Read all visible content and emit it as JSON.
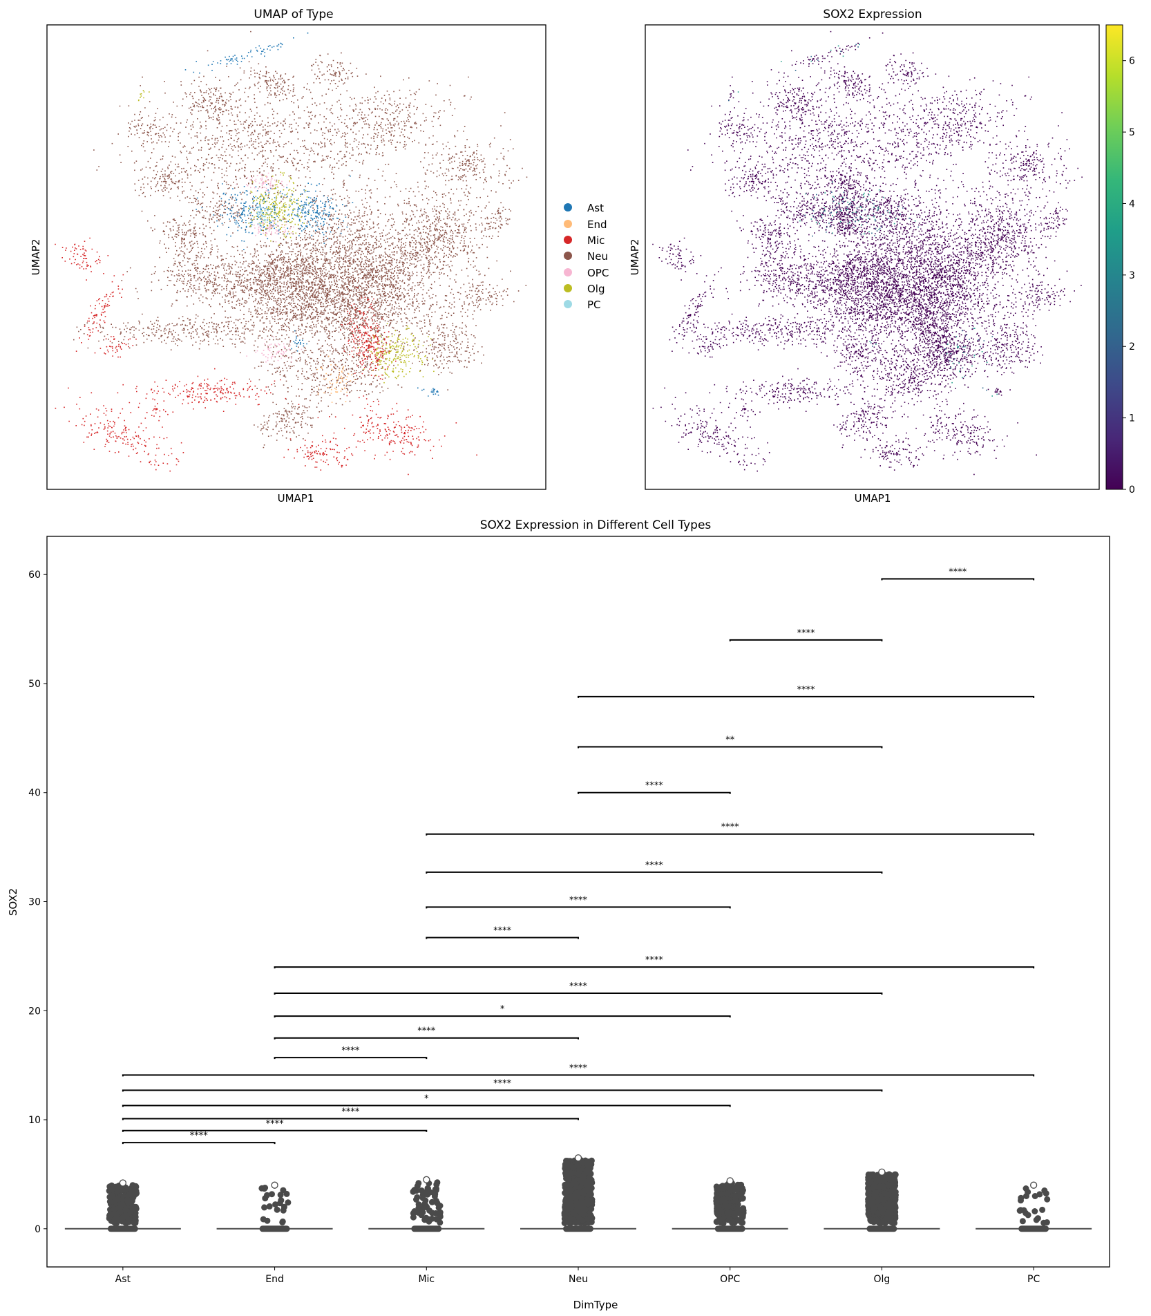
{
  "umap_type": {
    "title": "UMAP of Type",
    "xlabel": "UMAP1",
    "ylabel": "UMAP2",
    "legend": [
      {
        "label": "Ast",
        "color": "#1f77b4"
      },
      {
        "label": "End",
        "color": "#ffbb78"
      },
      {
        "label": "Mic",
        "color": "#d62728"
      },
      {
        "label": "Neu",
        "color": "#8c564b"
      },
      {
        "label": "OPC",
        "color": "#f7b6d2"
      },
      {
        "label": "Olg",
        "color": "#bcbd22"
      },
      {
        "label": "PC",
        "color": "#9edae5"
      }
    ]
  },
  "umap_sox2": {
    "title": "SOX2 Expression",
    "xlabel": "UMAP1",
    "ylabel": "UMAP2",
    "colorbar": {
      "ticks": [
        "0",
        "1",
        "2",
        "3",
        "4",
        "5",
        "6"
      ],
      "min": 0,
      "max": 6.5,
      "colormap": [
        "#440154",
        "#482878",
        "#3e4989",
        "#31688e",
        "#26828e",
        "#1f9e89",
        "#35b779",
        "#6ece58",
        "#b5de2b",
        "#fde725"
      ]
    },
    "base_color": "#440154"
  },
  "chart_data": {
    "type": "scatter",
    "subtype": "strip-with-violin-and-significance",
    "title": "SOX2 Expression in Different Cell Types",
    "xlabel": "DimType",
    "ylabel": "SOX2",
    "categories": [
      "Ast",
      "End",
      "Mic",
      "Neu",
      "OPC",
      "Olg",
      "PC"
    ],
    "ylim": [
      -3.5,
      63.5
    ],
    "yticks": [
      0,
      10,
      20,
      30,
      40,
      50,
      60
    ],
    "ytick_labels": [
      "0",
      "10",
      "20",
      "30",
      "40",
      "50",
      "60"
    ],
    "grid": false,
    "point_color": "#4a4a4a",
    "max_values": [
      4.2,
      4.0,
      4.5,
      6.5,
      4.4,
      5.2,
      4.0
    ],
    "strip_density": [
      "dense",
      "sparse",
      "medium",
      "very-dense",
      "dense",
      "very-dense",
      "sparse"
    ],
    "significance": [
      {
        "from": "Ast",
        "to": "End",
        "y": 7.9,
        "label": "****"
      },
      {
        "from": "Ast",
        "to": "Mic",
        "y": 9.0,
        "label": "****"
      },
      {
        "from": "Ast",
        "to": "Neu",
        "y": 10.1,
        "label": "****"
      },
      {
        "from": "Ast",
        "to": "OPC",
        "y": 11.3,
        "label": "*"
      },
      {
        "from": "Ast",
        "to": "Olg",
        "y": 12.7,
        "label": "****"
      },
      {
        "from": "Ast",
        "to": "PC",
        "y": 14.1,
        "label": "****"
      },
      {
        "from": "End",
        "to": "Mic",
        "y": 15.7,
        "label": "****"
      },
      {
        "from": "End",
        "to": "Neu",
        "y": 17.5,
        "label": "****"
      },
      {
        "from": "End",
        "to": "OPC",
        "y": 19.5,
        "label": "*"
      },
      {
        "from": "End",
        "to": "Olg",
        "y": 21.6,
        "label": "****"
      },
      {
        "from": "End",
        "to": "PC",
        "y": 24.0,
        "label": "****"
      },
      {
        "from": "Mic",
        "to": "Neu",
        "y": 26.7,
        "label": "****"
      },
      {
        "from": "Mic",
        "to": "OPC",
        "y": 29.5,
        "label": "****"
      },
      {
        "from": "Mic",
        "to": "Olg",
        "y": 32.7,
        "label": "****"
      },
      {
        "from": "Mic",
        "to": "PC",
        "y": 36.2,
        "label": "****"
      },
      {
        "from": "Neu",
        "to": "OPC",
        "y": 40.0,
        "label": "****"
      },
      {
        "from": "Neu",
        "to": "Olg",
        "y": 44.2,
        "label": "**"
      },
      {
        "from": "Neu",
        "to": "PC",
        "y": 48.8,
        "label": "****"
      },
      {
        "from": "OPC",
        "to": "Olg",
        "y": 54.0,
        "label": "****"
      },
      {
        "from": "Olg",
        "to": "PC",
        "y": 59.6,
        "label": "****"
      }
    ]
  }
}
